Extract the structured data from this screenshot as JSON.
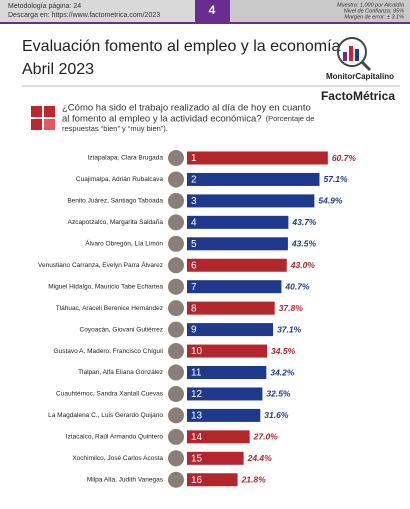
{
  "header": {
    "methodology": "Metodología página: 24",
    "download": "Descarga en: https://www.factometrica.com/2023",
    "page": "4",
    "sample": "Muestra: 1,000 por Alcaldía",
    "confidence": "Nivel de Confianza: 95%",
    "error": "Margen de error: ± 3.1%",
    "logo": "MonitorCapitalino",
    "brand": "FactoMétrica"
  },
  "chart_data": {
    "type": "bar",
    "orientation": "horizontal",
    "title": "Evaluación fomento al empleo y la economía",
    "subtitle": "Abril 2023",
    "question": [
      "¿Cómo ha sido el trabajo realizado al día de hoy en cuanto",
      "al fomento al empleo y la actividad económica?"
    ],
    "note": [
      "(Porcentaje de",
      "respuestas “bien” y “muy bien”)."
    ],
    "categories": [
      "Iztapalapa, Clara Brugada",
      "Cuajimalpa, Adrián Rubalcava",
      "Benito Juárez, Santiago Taboada",
      "Azcapotzalco, Margarita Saldaña",
      "Álvaro Obregón, Lía Limón",
      "Venustiano Carranza, Evelyn Parra Álvarez",
      "Miguel Hidalgo, Mauricio Tabe Echartea",
      "Tláhuac, Araceli Berenice Hernández",
      "Coyoacán, Giovani Gutiérrez",
      "Gustavo A. Madero, Francisco Chíguil",
      "Tlalpan, Alfa Eliana González",
      "Cuauhtémoc, Sandra Xantall Cuevas",
      "La Magdalena C., Luis Gerardo Quijano",
      "Iztacalco, Raúl Armando Quintero",
      "Xochimilco, José Carlos Acosta",
      "Milpa Alta, Judith Vanegas"
    ],
    "ranks": [
      "1",
      "2",
      "3",
      "4",
      "5",
      "6",
      "7",
      "8",
      "9",
      "10",
      "11",
      "12",
      "13",
      "14",
      "15",
      "16"
    ],
    "values": [
      60.7,
      57.1,
      54.9,
      43.7,
      43.5,
      43.0,
      40.7,
      37.8,
      37.1,
      34.5,
      34.2,
      32.5,
      31.6,
      27.0,
      24.4,
      21.8
    ],
    "value_labels": [
      "60.7%",
      "57.1%",
      "54.9%",
      "43.7%",
      "43.5%",
      "43.0%",
      "40.7%",
      "37.8%",
      "37.1%",
      "34.5%",
      "34.2%",
      "32.5%",
      "31.6%",
      "27.0%",
      "24.4%",
      "21.8%"
    ],
    "colors": [
      "#b3262c",
      "#1f3a8c",
      "#1f3a8c",
      "#1f3a8c",
      "#1f3a8c",
      "#b3262c",
      "#1f3a8c",
      "#b3262c",
      "#1f3a8c",
      "#b3262c",
      "#1f3a8c",
      "#1f3a8c",
      "#1f3a8c",
      "#b3262c",
      "#b3262c",
      "#b3262c"
    ]
  }
}
